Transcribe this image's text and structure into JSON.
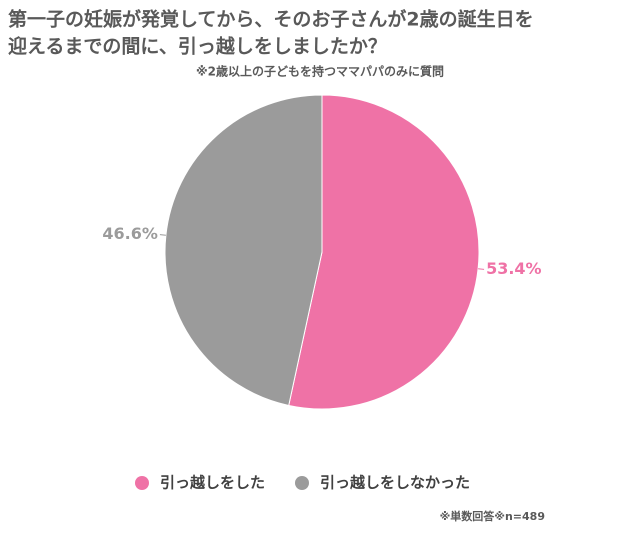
{
  "chart_data": {
    "type": "pie",
    "title": [
      "第一子の妊娠が発覚してから、そのお子さんが2歳の誕生日を",
      "迎えるまでの間に、引っ越しをしましたか？"
    ],
    "subtitle": "※2歳以上の子どもを持つママパパのみに質問",
    "categories": [
      "引っ越しをした",
      "引っ越しをしなかった"
    ],
    "values": [
      53.4,
      46.6
    ],
    "value_labels": [
      "53.4%",
      "46.6%"
    ],
    "colors": [
      "#ef72a6",
      "#9b9b9b"
    ],
    "legend": "bottom",
    "note": "※単数回答※n=489"
  }
}
